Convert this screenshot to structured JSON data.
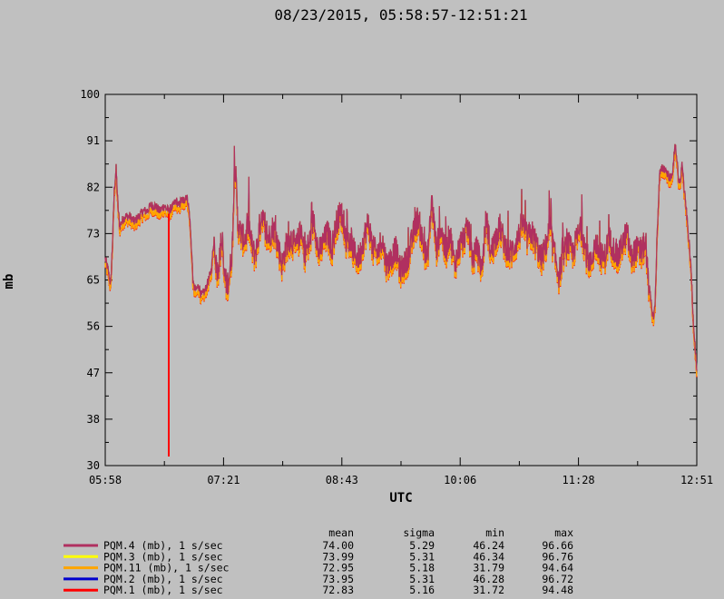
{
  "chart_data": {
    "type": "line",
    "title": "08/23/2015, 05:58:57-12:51:21",
    "xlabel": "UTC",
    "ylabel": "mb",
    "x_tick_labels": [
      "05:58",
      "07:21",
      "08:43",
      "10:06",
      "11:28",
      "12:51"
    ],
    "y_tick_labels": [
      "100",
      "91",
      "82",
      "73",
      "65",
      "56",
      "47",
      "38",
      "30"
    ],
    "ylim": [
      30,
      100
    ],
    "grid": false,
    "stats_headers": [
      "mean",
      "sigma",
      "min",
      "max"
    ],
    "series": [
      {
        "name": "PQM.4 (mb), 1 s/sec",
        "color": "#b03060",
        "mean": "74.00",
        "sigma": "5.29",
        "min": "46.24",
        "max": "96.66"
      },
      {
        "name": "PQM.3 (mb), 1 s/sec",
        "color": "#ffff00",
        "mean": "73.99",
        "sigma": "5.31",
        "min": "46.34",
        "max": "96.76"
      },
      {
        "name": "PQM.11 (mb), 1 s/sec",
        "color": "#ffa500",
        "mean": "72.95",
        "sigma": "5.18",
        "min": "31.79",
        "max": "94.64"
      },
      {
        "name": "PQM.2 (mb), 1 s/sec",
        "color": "#0000cd",
        "mean": "73.95",
        "sigma": "5.31",
        "min": "46.28",
        "max": "96.72"
      },
      {
        "name": "PQM.1 (mb), 1 s/sec",
        "color": "#ff0000",
        "mean": "72.83",
        "sigma": "5.16",
        "min": "31.72",
        "max": "94.48"
      }
    ],
    "profile": [
      [
        0,
        69
      ],
      [
        3,
        67
      ],
      [
        6,
        64
      ],
      [
        8,
        72
      ],
      [
        10,
        82
      ],
      [
        12,
        86
      ],
      [
        14,
        79
      ],
      [
        16,
        75
      ],
      [
        18,
        76
      ],
      [
        22,
        77
      ],
      [
        27,
        77
      ],
      [
        32,
        76
      ],
      [
        37,
        77
      ],
      [
        42,
        78
      ],
      [
        46,
        78
      ],
      [
        50,
        79
      ],
      [
        55,
        79
      ],
      [
        60,
        78
      ],
      [
        65,
        79
      ],
      [
        70,
        78
      ],
      [
        75,
        79
      ],
      [
        78,
        80
      ],
      [
        81,
        79
      ],
      [
        84,
        80
      ],
      [
        87,
        80
      ],
      [
        89,
        81
      ],
      [
        91,
        80
      ],
      [
        93,
        77
      ],
      [
        95,
        71
      ],
      [
        97,
        64
      ],
      [
        100,
        63
      ],
      [
        103,
        64
      ],
      [
        106,
        62
      ],
      [
        110,
        63
      ],
      [
        114,
        65
      ],
      [
        117,
        67
      ],
      [
        120,
        73
      ],
      [
        123,
        66
      ],
      [
        126,
        69
      ],
      [
        128,
        73
      ],
      [
        131,
        66
      ],
      [
        134,
        64
      ],
      [
        137,
        66
      ],
      [
        140,
        71
      ],
      [
        143,
        88
      ],
      [
        146,
        76
      ],
      [
        149,
        74
      ],
      [
        152,
        73
      ],
      [
        155,
        73
      ],
      [
        158,
        76
      ],
      [
        161,
        72
      ],
      [
        164,
        70
      ],
      [
        167,
        71
      ],
      [
        170,
        75
      ],
      [
        173,
        78
      ],
      [
        176,
        74
      ],
      [
        180,
        73
      ],
      [
        185,
        75
      ],
      [
        190,
        72
      ],
      [
        195,
        68
      ],
      [
        200,
        72
      ],
      [
        205,
        73
      ],
      [
        210,
        71
      ],
      [
        215,
        74
      ],
      [
        220,
        70
      ],
      [
        225,
        72
      ],
      [
        230,
        77
      ],
      [
        235,
        70
      ],
      [
        240,
        72
      ],
      [
        245,
        74
      ],
      [
        250,
        71
      ],
      [
        255,
        76
      ],
      [
        260,
        78
      ],
      [
        265,
        73
      ],
      [
        270,
        72
      ],
      [
        275,
        70
      ],
      [
        280,
        69
      ],
      [
        285,
        73
      ],
      [
        290,
        76
      ],
      [
        295,
        71
      ],
      [
        300,
        70
      ],
      [
        305,
        73
      ],
      [
        310,
        68
      ],
      [
        315,
        69
      ],
      [
        320,
        71
      ],
      [
        325,
        67
      ],
      [
        330,
        68
      ],
      [
        335,
        70
      ],
      [
        340,
        74
      ],
      [
        345,
        77
      ],
      [
        350,
        72
      ],
      [
        355,
        69
      ],
      [
        360,
        80
      ],
      [
        365,
        71
      ],
      [
        370,
        75
      ],
      [
        375,
        70
      ],
      [
        380,
        74
      ],
      [
        385,
        68
      ],
      [
        390,
        71
      ],
      [
        395,
        73
      ],
      [
        400,
        75
      ],
      [
        405,
        69
      ],
      [
        410,
        71
      ],
      [
        415,
        67
      ],
      [
        420,
        77
      ],
      [
        425,
        70
      ],
      [
        430,
        73
      ],
      [
        435,
        75
      ],
      [
        440,
        72
      ],
      [
        445,
        70
      ],
      [
        450,
        71
      ],
      [
        455,
        73
      ],
      [
        460,
        76
      ],
      [
        465,
        73
      ],
      [
        470,
        74
      ],
      [
        475,
        72
      ],
      [
        480,
        69
      ],
      [
        485,
        71
      ],
      [
        490,
        75
      ],
      [
        495,
        70
      ],
      [
        500,
        66
      ],
      [
        505,
        70
      ],
      [
        510,
        72
      ],
      [
        515,
        70
      ],
      [
        520,
        73
      ],
      [
        525,
        75
      ],
      [
        530,
        70
      ],
      [
        535,
        68
      ],
      [
        540,
        72
      ],
      [
        545,
        70
      ],
      [
        550,
        69
      ],
      [
        555,
        73
      ],
      [
        560,
        71
      ],
      [
        565,
        69
      ],
      [
        570,
        72
      ],
      [
        575,
        74
      ],
      [
        580,
        69
      ],
      [
        585,
        71
      ],
      [
        590,
        70
      ],
      [
        595,
        72
      ],
      [
        598,
        66
      ],
      [
        600,
        63
      ],
      [
        602,
        60
      ],
      [
        604,
        58
      ],
      [
        606,
        60
      ],
      [
        608,
        72
      ],
      [
        611,
        85
      ],
      [
        614,
        86
      ],
      [
        617,
        86
      ],
      [
        620,
        85
      ],
      [
        623,
        84
      ],
      [
        626,
        86
      ],
      [
        628,
        91
      ],
      [
        630,
        88
      ],
      [
        632,
        83
      ],
      [
        634,
        84
      ],
      [
        636,
        87
      ],
      [
        638,
        82
      ],
      [
        640,
        79
      ],
      [
        642,
        75
      ],
      [
        644,
        71
      ],
      [
        646,
        66
      ],
      [
        648,
        58
      ],
      [
        650,
        53
      ],
      [
        652,
        48
      ]
    ],
    "spikes": [
      {
        "x": 70,
        "y_low": 31.79,
        "series": "PQM.11 (mb), 1 s/sec"
      },
      {
        "x": 70,
        "y_low": 31.72,
        "series": "PQM.1 (mb), 1 s/sec"
      }
    ],
    "x_range": [
      0,
      652
    ]
  }
}
